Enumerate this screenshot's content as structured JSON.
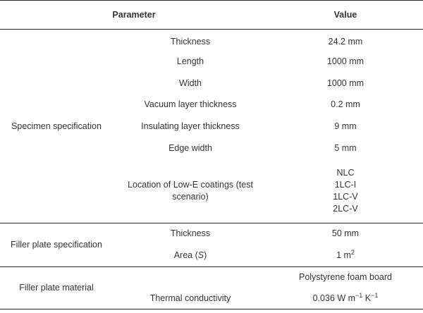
{
  "header": {
    "col_parameter": "Parameter",
    "col_value": "Value"
  },
  "specimen": {
    "label": "Specimen specification",
    "rows": [
      {
        "param": "Thickness",
        "value": "24.2 mm"
      },
      {
        "param": "Length",
        "value": "1000 mm"
      },
      {
        "param": "Width",
        "value": "1000 mm"
      },
      {
        "param": "Vacuum layer thickness",
        "value": "0.2 mm"
      },
      {
        "param": "Insulating layer thickness",
        "value": "9 mm"
      },
      {
        "param": "Edge width",
        "value": "5 mm"
      }
    ],
    "lowe": {
      "param": "Location of Low-E coatings (test scenario)",
      "values": [
        "NLC",
        "1LC-I",
        "1LC-V",
        "2LC-V"
      ]
    }
  },
  "filler_spec": {
    "label": "Filler plate specification",
    "thickness_param": "Thickness",
    "thickness_value": "50 mm",
    "area_param_prefix": "Area (",
    "area_param_symbol": "S",
    "area_param_suffix": ")",
    "area_value_base": "1 m",
    "area_value_exp": "2"
  },
  "filler_material": {
    "label": "Filler plate material",
    "material_value": "Polystyrene foam board",
    "conductivity_param": "Thermal conductivity",
    "conductivity_value_a": "0.036 W m",
    "conductivity_exp_a": "−1",
    "conductivity_value_b": " K",
    "conductivity_exp_b": "−1"
  }
}
